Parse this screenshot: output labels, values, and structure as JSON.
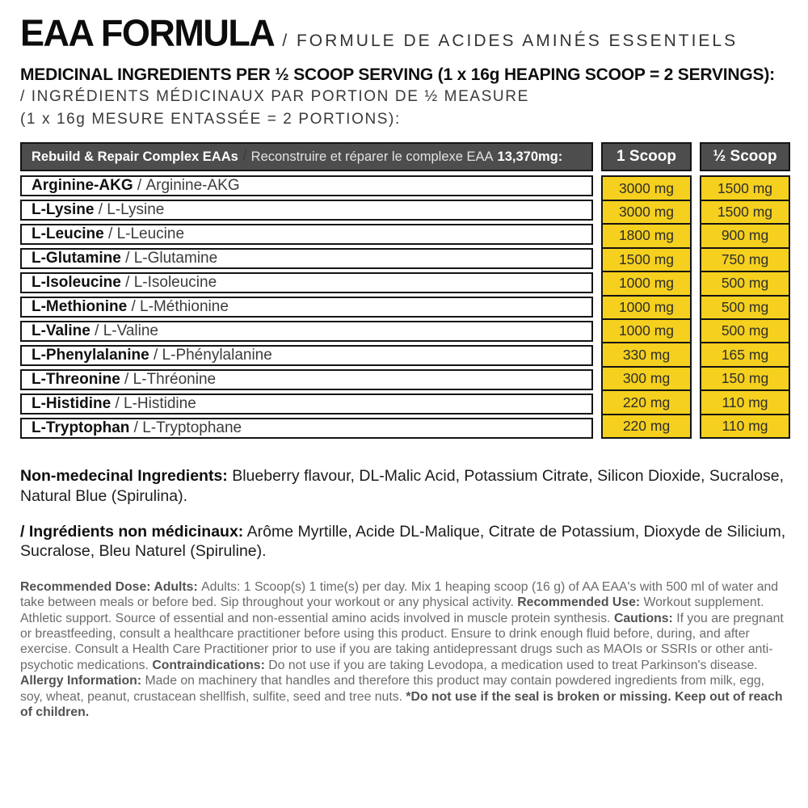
{
  "colors": {
    "accent_yellow": "#F5D01E",
    "header_gray": "#4D4D4D",
    "border_black": "#141414"
  },
  "header": {
    "title": "EAA FORMULA",
    "subtitle": "/ FORMULE DE ACIDES AMINÉS ESSENTIELS",
    "serving_en": "MEDICINAL INGREDIENTS PER ½ SCOOP SERVING (1 x 16g HEAPING SCOOP = 2 SERVINGS):",
    "serving_fr_line1": "/ INGRÉDIENTS MÉDICINAUX PAR PORTION DE ½ MEASURE",
    "serving_fr_line2": "(1 x 16g MESURE ENTASSÉE = 2 PORTIONS):"
  },
  "table": {
    "separator": " / ",
    "header": {
      "complex_en": "Rebuild & Repair Complex EAAs",
      "complex_fr": "Reconstruire et réparer le complexe EAA",
      "total": "13,370mg:",
      "col1": "1 Scoop",
      "col2": "½ Scoop"
    },
    "rows": [
      {
        "en": "Arginine-AKG",
        "fr": "Arginine-AKG",
        "scoop1": "3000 mg",
        "scoop_half": "1500 mg"
      },
      {
        "en": "L-Lysine",
        "fr": "L-Lysine",
        "scoop1": "3000 mg",
        "scoop_half": "1500 mg"
      },
      {
        "en": "L-Leucine",
        "fr": "L-Leucine",
        "scoop1": "1800 mg",
        "scoop_half": "900 mg"
      },
      {
        "en": "L-Glutamine",
        "fr": "L-Glutamine",
        "scoop1": "1500 mg",
        "scoop_half": "750 mg"
      },
      {
        "en": "L-Isoleucine",
        "fr": "L-Isoleucine",
        "scoop1": "1000 mg",
        "scoop_half": "500 mg"
      },
      {
        "en": "L-Methionine",
        "fr": "L-Méthionine",
        "scoop1": "1000 mg",
        "scoop_half": "500 mg"
      },
      {
        "en": "L-Valine",
        "fr": "L-Valine",
        "scoop1": "1000 mg",
        "scoop_half": "500 mg"
      },
      {
        "en": "L-Phenylalanine",
        "fr": "L-Phénylalanine",
        "scoop1": "330 mg",
        "scoop_half": "165 mg"
      },
      {
        "en": "L-Threonine",
        "fr": "L-Thréonine",
        "scoop1": "300 mg",
        "scoop_half": "150 mg"
      },
      {
        "en": "L-Histidine",
        "fr": "L-Histidine",
        "scoop1": "220 mg",
        "scoop_half": "110 mg"
      },
      {
        "en": "L-Tryptophan",
        "fr": "L-Tryptophane",
        "scoop1": "220 mg",
        "scoop_half": "110 mg"
      }
    ]
  },
  "non_medicinal_en": {
    "label": "Non-medecinal Ingredients:",
    "text": " Blueberry flavour, DL-Malic Acid, Potassium Citrate, Silicon Dioxide, Sucralose, Natural Blue (Spirulina)."
  },
  "non_medicinal_fr": {
    "label": "/ Ingrédients non médicinaux:",
    "text": " Arôme Myrtille, Acide DL-Malique, Citrate de Potassium, Dioxyde de Silicium, Sucralose, Bleu Naturel (Spiruline)."
  },
  "legal": {
    "segments": [
      {
        "bold": true,
        "text": "Recommended Dose: Adults: "
      },
      {
        "bold": false,
        "text": "Adults: 1 Scoop(s) 1 time(s) per day. Mix 1 heaping scoop (16 g) of AA EAA's with 500 ml of water and take between meals or before bed. Sip throughout your workout or any physical activity. "
      },
      {
        "bold": true,
        "text": "Recommended Use: "
      },
      {
        "bold": false,
        "text": "Workout supplement. Athletic support. Source of essential and non-essential amino acids involved in muscle protein synthesis. "
      },
      {
        "bold": true,
        "text": "Cautions: "
      },
      {
        "bold": false,
        "text": "If you are pregnant or breastfeeding, consult a healthcare practitioner before using this product. Ensure to drink enough fluid before, during, and after exercise. Consult a Health Care Practitioner prior to use if you are taking antidepressant drugs such as MAOIs or SSRIs or other anti- psychotic medications. "
      },
      {
        "bold": true,
        "text": "Contraindications: "
      },
      {
        "bold": false,
        "text": "Do not use if you are taking Levodopa, a medication used to treat Parkinson's disease. "
      },
      {
        "bold": true,
        "text": "Allergy Information: "
      },
      {
        "bold": false,
        "text": "Made on machinery that handles and therefore this product may contain powdered ingredients from milk, egg, soy, wheat, peanut, crustacean shellfish, sulfite, seed and tree nuts. "
      },
      {
        "bold": true,
        "text": "*Do not use if the seal is broken or missing. Keep out of reach of children."
      }
    ]
  }
}
